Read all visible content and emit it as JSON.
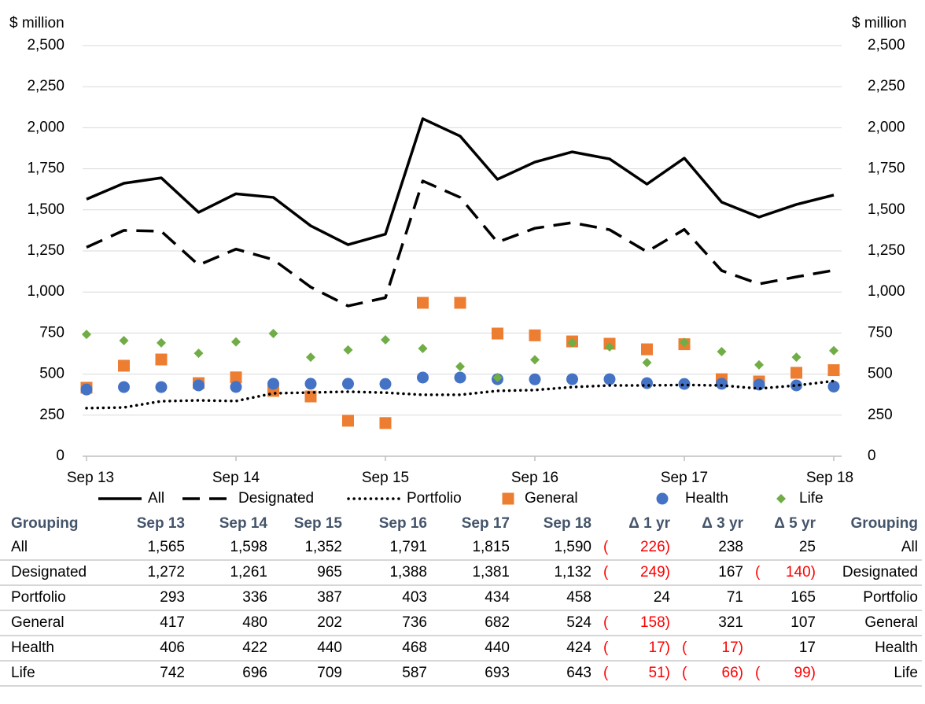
{
  "chart_data": {
    "type": "combo",
    "y_label": "$ million",
    "y2_label": "$ million",
    "categories": [
      "Sep 13",
      null,
      null,
      null,
      "Sep 14",
      null,
      null,
      null,
      "Sep 15",
      null,
      null,
      null,
      "Sep 16",
      null,
      null,
      null,
      "Sep 17",
      null,
      null,
      null,
      "Sep 18"
    ],
    "ylim": [
      0,
      2500
    ],
    "yticks": [
      0,
      250,
      500,
      750,
      {
        "value": 1000,
        "label": "1,000"
      },
      {
        "value": 1250,
        "label": "1,250"
      },
      {
        "value": 1500,
        "label": "1,500"
      },
      {
        "value": 1750,
        "label": "1,750"
      },
      {
        "value": 2000,
        "label": "2,000"
      },
      {
        "value": 2250,
        "label": "2,250"
      },
      {
        "value": 2500,
        "label": "2,500"
      }
    ],
    "y2lim": [
      0,
      2500
    ],
    "y2ticks": [
      0,
      250,
      500,
      750,
      {
        "value": 1000,
        "label": "1,000"
      },
      {
        "value": 1250,
        "label": "1,250"
      },
      {
        "value": 1500,
        "label": "1,500"
      },
      {
        "value": 1750,
        "label": "1,750"
      },
      {
        "value": 2000,
        "label": "2,000"
      },
      {
        "value": 2250,
        "label": "2,250"
      },
      {
        "value": 2500,
        "label": "2,500"
      }
    ],
    "grid": true,
    "legend": "bottom",
    "series": [
      {
        "name": "All",
        "type": "line",
        "dash": "solid",
        "color": "#000000",
        "values": [
          1565,
          1662,
          1695,
          1485,
          1598,
          1576,
          1403,
          1288,
          1352,
          2055,
          1949,
          1686,
          1791,
          1853,
          1810,
          1657,
          1815,
          1547,
          1456,
          1533,
          1590
        ]
      },
      {
        "name": "Designated",
        "type": "line",
        "dash": "dashed",
        "color": "#000000",
        "values": [
          1272,
          1375,
          1370,
          1164,
          1261,
          1197,
          1030,
          915,
          965,
          1676,
          1576,
          1303,
          1388,
          1422,
          1379,
          1245,
          1381,
          1130,
          1049,
          1092,
          1132
        ]
      },
      {
        "name": "Portfolio",
        "type": "line",
        "dash": "dotted",
        "color": "#000000",
        "values": [
          293,
          297,
          335,
          340,
          336,
          383,
          388,
          393,
          387,
          374,
          374,
          398,
          403,
          421,
          431,
          431,
          434,
          431,
          412,
          431,
          458
        ]
      },
      {
        "name": "General",
        "type": "scatter",
        "marker": "square",
        "color": "#ed7d31",
        "values": [
          417,
          551,
          589,
          445,
          480,
          398,
          364,
          216,
          202,
          934,
          934,
          747,
          736,
          699,
          685,
          651,
          682,
          469,
          455,
          508,
          524
        ]
      },
      {
        "name": "Health",
        "type": "scatter",
        "marker": "circle",
        "color": "#4472c4",
        "values": [
          406,
          421,
          421,
          431,
          422,
          441,
          441,
          441,
          440,
          479,
          479,
          469,
          468,
          469,
          469,
          445,
          440,
          441,
          436,
          431,
          424
        ]
      },
      {
        "name": "Life",
        "type": "scatter",
        "marker": "diamond",
        "color": "#70ad47",
        "values": [
          742,
          704,
          690,
          627,
          696,
          747,
          603,
          647,
          709,
          656,
          546,
          479,
          587,
          690,
          666,
          570,
          693,
          637,
          556,
          603,
          643
        ]
      }
    ]
  },
  "table": {
    "header": [
      "Grouping",
      "Sep 13",
      "Sep 14",
      "Sep 15",
      "Sep 16",
      "Sep 17",
      "Sep 18",
      "Δ 1 yr",
      "Δ 3 yr",
      "Δ 5 yr",
      "Grouping"
    ],
    "rows": [
      [
        "All",
        "1,565",
        "1,598",
        "1,352",
        "1,791",
        "1,815",
        "1,590",
        "( 226)",
        "238",
        "25",
        "All"
      ],
      [
        "Designated",
        "1,272",
        "1,261",
        "965",
        "1,388",
        "1,381",
        "1,132",
        "( 249)",
        "167",
        "( 140)",
        "Designated"
      ],
      [
        "Portfolio",
        "293",
        "336",
        "387",
        "403",
        "434",
        "458",
        "24",
        "71",
        "165",
        "Portfolio"
      ],
      [
        "General",
        "417",
        "480",
        "202",
        "736",
        "682",
        "524",
        "( 158)",
        "321",
        "107",
        "General"
      ],
      [
        "Health",
        "406",
        "422",
        "440",
        "468",
        "440",
        "424",
        "( 17)",
        "( 17)",
        "17",
        "Health"
      ],
      [
        "Life",
        "742",
        "696",
        "709",
        "587",
        "693",
        "643",
        "( 51)",
        "( 66)",
        "( 99)",
        "Life"
      ]
    ]
  }
}
